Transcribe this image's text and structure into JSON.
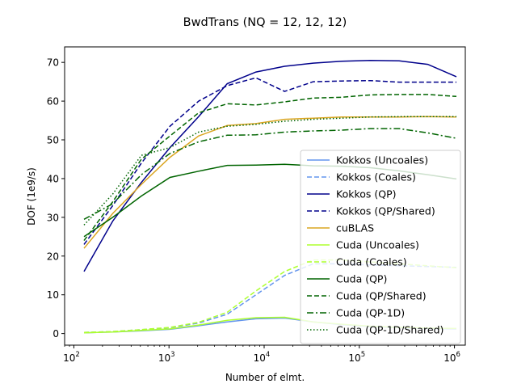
{
  "chart_data": {
    "type": "line",
    "title": "BwdTrans (NQ = 12, 12, 12)",
    "xlabel": "Number of elmt.",
    "ylabel": "DOF (1e9/s)",
    "x_scale": "log",
    "xlim": [
      80,
      1300000
    ],
    "ylim": [
      -3,
      74
    ],
    "x_ticks": [
      {
        "value": 100,
        "base": "10",
        "exp": "2"
      },
      {
        "value": 1000,
        "base": "10",
        "exp": "3"
      },
      {
        "value": 10000,
        "base": "10",
        "exp": "4"
      },
      {
        "value": 100000,
        "base": "10",
        "exp": "5"
      },
      {
        "value": 1000000,
        "base": "10",
        "exp": "6"
      }
    ],
    "y_ticks": [
      "0",
      "10",
      "20",
      "30",
      "40",
      "50",
      "60",
      "70"
    ],
    "legend_position": "lower right",
    "grid": false,
    "x": [
      128,
      256,
      512,
      1024,
      2048,
      4096,
      8192,
      16384,
      32768,
      65536,
      131072,
      262144,
      524288,
      1048576
    ],
    "series": [
      {
        "name": "Kokkos (Uncoales)",
        "color": "#6495ed",
        "dash": "solid",
        "values": [
          0.2,
          0.4,
          0.7,
          1.1,
          2.0,
          3.0,
          3.8,
          4.0,
          3.0,
          2.3,
          1.8,
          1.5,
          1.3,
          1.2
        ]
      },
      {
        "name": "Kokkos (Coales)",
        "color": "#6495ed",
        "dash": "dashed",
        "values": [
          0.3,
          0.5,
          1.0,
          1.5,
          2.7,
          5.0,
          10.0,
          15.0,
          18.0,
          18.0,
          17.7,
          17.5,
          17.3,
          17.1
        ]
      },
      {
        "name": "Kokkos (QP)",
        "color": "#00008b",
        "dash": "solid",
        "values": [
          16.0,
          29.0,
          39.0,
          48.0,
          56.0,
          64.5,
          67.5,
          69.0,
          69.8,
          70.3,
          70.5,
          70.4,
          69.5,
          66.3
        ]
      },
      {
        "name": "Kokkos (QP/Shared)",
        "color": "#00008b",
        "dash": "dashed",
        "values": [
          23.0,
          33.0,
          44.0,
          53.5,
          60.0,
          64.0,
          66.0,
          62.5,
          65.0,
          65.2,
          65.3,
          64.9,
          64.9,
          64.9
        ]
      },
      {
        "name": "cuBLAS",
        "color": "#daa520",
        "dash": "solid",
        "values": [
          22.0,
          31.0,
          38.5,
          45.5,
          51.0,
          53.7,
          54.2,
          55.3,
          55.6,
          55.9,
          55.9,
          55.9,
          56.0,
          55.9
        ]
      },
      {
        "name": "Cuda (Uncoales)",
        "color": "#adff2f",
        "dash": "solid",
        "values": [
          0.2,
          0.4,
          0.8,
          1.2,
          2.2,
          3.4,
          4.1,
          4.2,
          3.0,
          2.4,
          1.9,
          1.6,
          1.4,
          1.3
        ]
      },
      {
        "name": "Cuda (Coales)",
        "color": "#adff2f",
        "dash": "dashed",
        "values": [
          0.3,
          0.5,
          1.0,
          1.6,
          2.9,
          5.5,
          11.0,
          16.0,
          19.0,
          19.0,
          18.5,
          18.0,
          17.5,
          17.0
        ]
      },
      {
        "name": "Cuda (QP)",
        "color": "#006400",
        "dash": "solid",
        "values": [
          25.0,
          30.0,
          35.5,
          40.3,
          41.9,
          43.4,
          43.5,
          43.7,
          43.3,
          43.2,
          42.8,
          42.0,
          41.0,
          39.9
        ]
      },
      {
        "name": "Cuda (QP/Shared)",
        "color": "#006400",
        "dash": "dashed",
        "values": [
          24.0,
          34.0,
          45.0,
          51.0,
          57.0,
          59.3,
          59.0,
          59.8,
          60.8,
          61.0,
          61.6,
          61.7,
          61.7,
          61.2
        ]
      },
      {
        "name": "Cuda (QP-1D)",
        "color": "#006400",
        "dash": "dashdot",
        "values": [
          29.5,
          33.5,
          41.0,
          46.5,
          49.5,
          51.2,
          51.3,
          52.0,
          52.3,
          52.5,
          52.9,
          52.9,
          51.8,
          50.4
        ]
      },
      {
        "name": "Cuda (QP-1D/Shared)",
        "color": "#006400",
        "dash": "dotted",
        "values": [
          28.0,
          36.0,
          46.0,
          48.0,
          52.0,
          53.5,
          54.0,
          54.8,
          55.3,
          55.6,
          55.9,
          56.0,
          56.0,
          56.0
        ]
      }
    ]
  }
}
